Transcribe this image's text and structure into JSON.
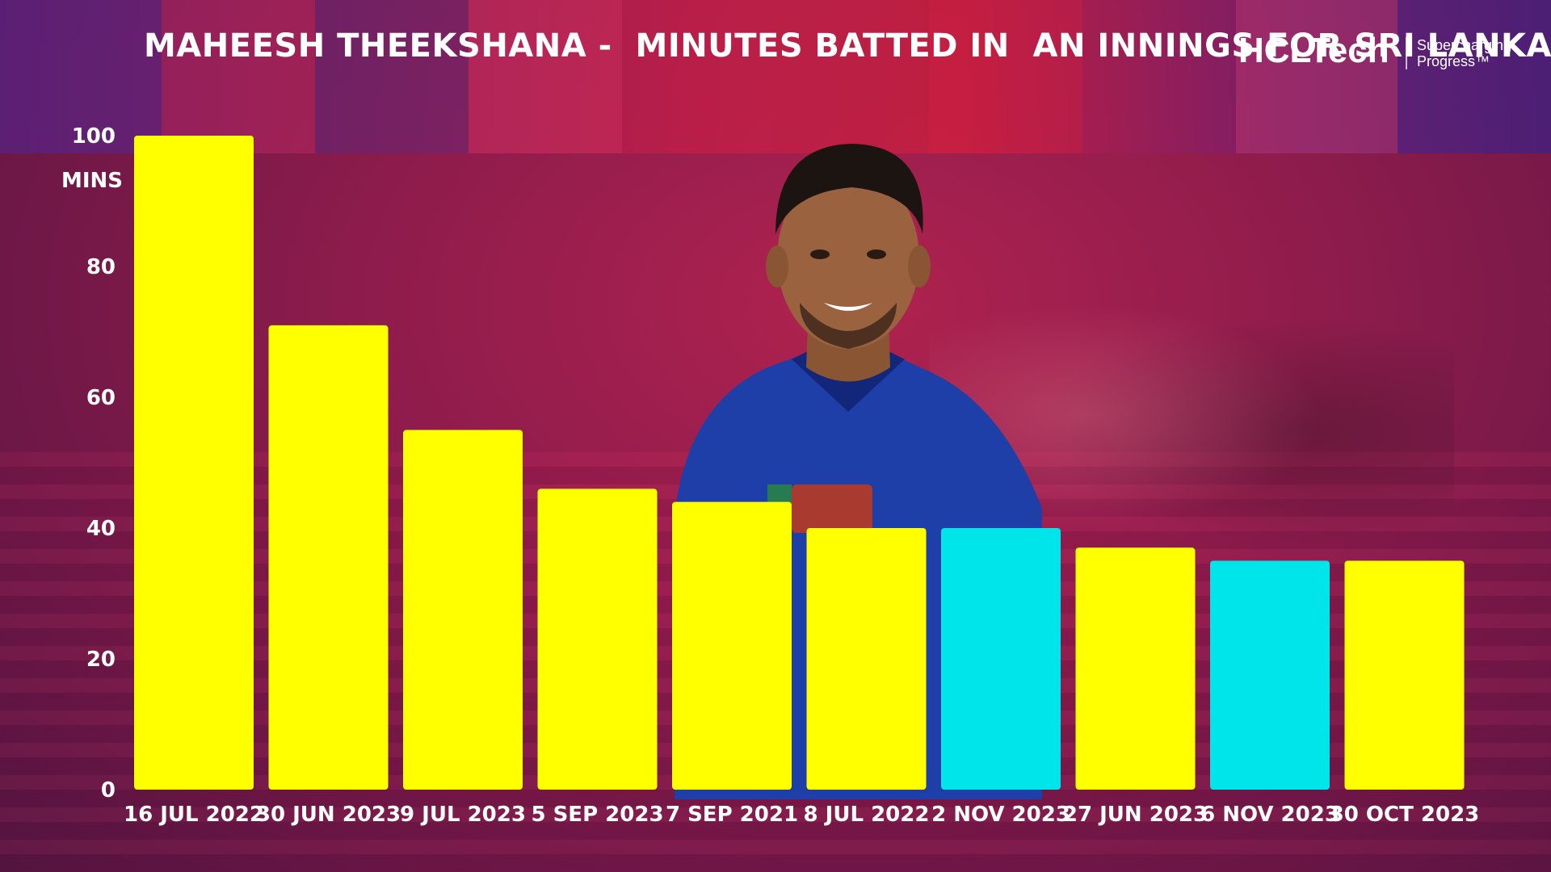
{
  "title": "MAHEESH THEEKSHANA -  MINUTES BATTED IN  AN INNINGS FOR SRI LANKA",
  "logo": {
    "name": "HCLTech",
    "tagline_line1": "Supercharging",
    "tagline_line2": "Progress™"
  },
  "colors": {
    "bar_primary": "#ffff00",
    "bar_highlight": "#00e5ea",
    "text": "#ffffff"
  },
  "chart_data": {
    "type": "bar",
    "title": "MAHEESH THEEKSHANA -  MINUTES BATTED IN  AN INNINGS FOR SRI LANKA",
    "xlabel": "",
    "ylabel": "MINS",
    "ylim": [
      0,
      100
    ],
    "yticks": [
      0,
      20,
      40,
      60,
      80,
      100
    ],
    "grid": false,
    "categories": [
      "16 JUL 2022",
      "30 JUN 2023",
      "9 JUL 2023",
      "5 SEP 2023",
      "7 SEP 2021",
      "8 JUL 2022",
      "2 NOV 2023",
      "27 JUN 2023",
      "6 NOV 2023",
      "30 OCT 2023"
    ],
    "values": [
      100,
      71,
      55,
      46,
      44,
      40,
      40,
      37,
      35,
      35
    ],
    "highlighted": [
      false,
      false,
      false,
      false,
      false,
      false,
      true,
      false,
      true,
      false
    ]
  }
}
